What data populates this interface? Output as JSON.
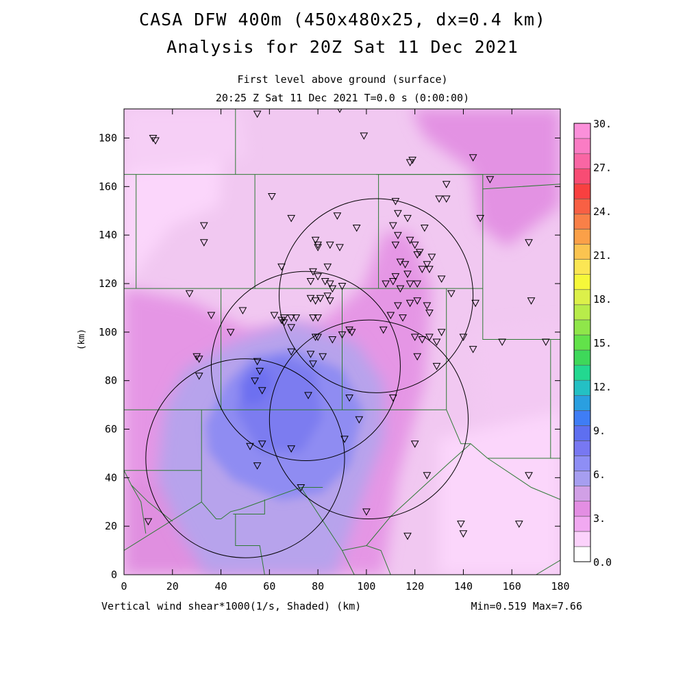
{
  "title_line1": "CASA DFW 400m (450x480x25, dx=0.4 km)",
  "title_line2": "Analysis for 20Z Sat 11 Dec 2021",
  "subtitle_line1": "First level above ground (surface)",
  "subtitle_line2": "20:25 Z Sat 11 Dec 2021    T=0.0 s (0:00:00)",
  "footer_left": "Vertical wind shear*1000(1/s, Shaded)  (km)",
  "footer_right": "Min=0.519 Max=7.66",
  "y_axis_label": "(km)",
  "x_ticks": [
    "0",
    "20",
    "40",
    "60",
    "80",
    "100",
    "120",
    "140",
    "160",
    "180"
  ],
  "y_ticks": [
    "0",
    "20",
    "40",
    "60",
    "80",
    "100",
    "120",
    "140",
    "160",
    "180"
  ],
  "colorbar": {
    "labels": [
      "30.",
      "27.",
      "24.",
      "21.",
      "18.",
      "15.",
      "12.",
      "9.",
      "6.",
      "3.",
      "0.0"
    ],
    "colors": [
      "#ffffff",
      "#fbd2fb",
      "#f1a9f1",
      "#e38ee3",
      "#d1a0e6",
      "#a69ef0",
      "#8e8ef5",
      "#7878f2",
      "#5e6ff0",
      "#3f7df5",
      "#2a9fe0",
      "#24c0c4",
      "#23d890",
      "#3ed85a",
      "#62e24a",
      "#8fe64a",
      "#b8ec4a",
      "#dcf04a",
      "#f6f83a",
      "#fbe654",
      "#fbc450",
      "#fba048",
      "#f98048",
      "#f86044",
      "#f84040",
      "#f84c74",
      "#f966a4",
      "#fa7cc4",
      "#fb90da"
    ]
  },
  "chart_data": {
    "type": "heatmap",
    "xlabel": "(km)",
    "ylabel": "(km)",
    "xlim": [
      0,
      180
    ],
    "ylim": [
      0,
      192
    ],
    "field": "Vertical wind shear*1000 (1/s)",
    "min": 0.519,
    "max": 7.66,
    "colorbar_range": [
      0,
      30
    ],
    "radar_rings": [
      {
        "cx": 50,
        "cy": 48,
        "r": 41
      },
      {
        "cx": 75,
        "cy": 86,
        "r": 39
      },
      {
        "cx": 104,
        "cy": 115,
        "r": 40
      },
      {
        "cx": 101,
        "cy": 64,
        "r": 41
      }
    ],
    "stations": [
      [
        12,
        180
      ],
      [
        13,
        179
      ],
      [
        55,
        190
      ],
      [
        89,
        192
      ],
      [
        99,
        181
      ],
      [
        118,
        170
      ],
      [
        119,
        171
      ],
      [
        144,
        172
      ],
      [
        151,
        163
      ],
      [
        61,
        156
      ],
      [
        133,
        161
      ],
      [
        130,
        155
      ],
      [
        133,
        155
      ],
      [
        112,
        154
      ],
      [
        147,
        147
      ],
      [
        113,
        149
      ],
      [
        117,
        147
      ],
      [
        111,
        144
      ],
      [
        113,
        140
      ],
      [
        124,
        143
      ],
      [
        33,
        144
      ],
      [
        33,
        137
      ],
      [
        69,
        147
      ],
      [
        88,
        148
      ],
      [
        96,
        143
      ],
      [
        79,
        138
      ],
      [
        80,
        136
      ],
      [
        80,
        135
      ],
      [
        85,
        136
      ],
      [
        89,
        135
      ],
      [
        112,
        136
      ],
      [
        118,
        138
      ],
      [
        120,
        136
      ],
      [
        122,
        133
      ],
      [
        121,
        132
      ],
      [
        127,
        131
      ],
      [
        167,
        137
      ],
      [
        118,
        120
      ],
      [
        114,
        129
      ],
      [
        116,
        128
      ],
      [
        117,
        124
      ],
      [
        121,
        120
      ],
      [
        123,
        126
      ],
      [
        125,
        128
      ],
      [
        126,
        126
      ],
      [
        131,
        122
      ],
      [
        65,
        127
      ],
      [
        78,
        125
      ],
      [
        84,
        127
      ],
      [
        77,
        121
      ],
      [
        80,
        123
      ],
      [
        83,
        121
      ],
      [
        85,
        120
      ],
      [
        86,
        118
      ],
      [
        90,
        119
      ],
      [
        108,
        120
      ],
      [
        111,
        121
      ],
      [
        112,
        123
      ],
      [
        114,
        118
      ],
      [
        27,
        116
      ],
      [
        135,
        116
      ],
      [
        145,
        112
      ],
      [
        168,
        113
      ],
      [
        84,
        115
      ],
      [
        81,
        114
      ],
      [
        85,
        113
      ],
      [
        77,
        114
      ],
      [
        79,
        113
      ],
      [
        118,
        112
      ],
      [
        121,
        113
      ],
      [
        113,
        111
      ],
      [
        125,
        111
      ],
      [
        126,
        108
      ],
      [
        110,
        107
      ],
      [
        115,
        106
      ],
      [
        36,
        107
      ],
      [
        49,
        109
      ],
      [
        62,
        107
      ],
      [
        66,
        106
      ],
      [
        69,
        106
      ],
      [
        71,
        106
      ],
      [
        65,
        105
      ],
      [
        66,
        104
      ],
      [
        78,
        106
      ],
      [
        80,
        106
      ],
      [
        69,
        102
      ],
      [
        44,
        100
      ],
      [
        90,
        99
      ],
      [
        93,
        101
      ],
      [
        94,
        100
      ],
      [
        107,
        101
      ],
      [
        79,
        98
      ],
      [
        80,
        98
      ],
      [
        86,
        97
      ],
      [
        120,
        98
      ],
      [
        123,
        97
      ],
      [
        126,
        98
      ],
      [
        129,
        96
      ],
      [
        131,
        100
      ],
      [
        140,
        98
      ],
      [
        144,
        93
      ],
      [
        156,
        96
      ],
      [
        174,
        96
      ],
      [
        30,
        90
      ],
      [
        31,
        89
      ],
      [
        31,
        82
      ],
      [
        69,
        92
      ],
      [
        77,
        91
      ],
      [
        82,
        90
      ],
      [
        78,
        87
      ],
      [
        55,
        88
      ],
      [
        56,
        84
      ],
      [
        54,
        80
      ],
      [
        57,
        76
      ],
      [
        76,
        74
      ],
      [
        93,
        73
      ],
      [
        111,
        73
      ],
      [
        121,
        90
      ],
      [
        129,
        86
      ],
      [
        97,
        64
      ],
      [
        57,
        54
      ],
      [
        69,
        52
      ],
      [
        91,
        56
      ],
      [
        52,
        53
      ],
      [
        120,
        54
      ],
      [
        55,
        45
      ],
      [
        73,
        36
      ],
      [
        125,
        41
      ],
      [
        10,
        22
      ],
      [
        100,
        26
      ],
      [
        139,
        21
      ],
      [
        140,
        17
      ],
      [
        117,
        16
      ],
      [
        163,
        21
      ],
      [
        167,
        41
      ]
    ],
    "counties": [
      [
        [
          46,
          192
        ],
        [
          46,
          165
        ]
      ],
      [
        [
          0,
          165
        ],
        [
          192,
          165
        ]
      ],
      [
        [
          5,
          165
        ],
        [
          5,
          118
        ]
      ],
      [
        [
          0,
          118
        ],
        [
          40,
          118
        ],
        [
          40,
          68
        ],
        [
          0,
          68
        ]
      ],
      [
        [
          54,
          165
        ],
        [
          54,
          118
        ]
      ],
      [
        [
          105,
          165
        ],
        [
          105,
          118
        ]
      ],
      [
        [
          40,
          118
        ],
        [
          105,
          118
        ]
      ],
      [
        [
          104,
          165
        ],
        [
          148,
          165
        ],
        [
          148,
          159
        ],
        [
          180,
          161
        ]
      ],
      [
        [
          148,
          159
        ],
        [
          148,
          97
        ],
        [
          180,
          97
        ]
      ],
      [
        [
          105,
          118
        ],
        [
          148,
          118
        ]
      ],
      [
        [
          90,
          118
        ],
        [
          90,
          68
        ]
      ],
      [
        [
          133,
          118
        ],
        [
          133,
          68
        ]
      ],
      [
        [
          40,
          68
        ],
        [
          133,
          68
        ]
      ],
      [
        [
          180,
          97
        ],
        [
          176,
          97
        ],
        [
          176,
          48
        ],
        [
          180,
          48
        ]
      ],
      [
        [
          133,
          68
        ],
        [
          139,
          54
        ],
        [
          143,
          54
        ],
        [
          150,
          48
        ],
        [
          176,
          48
        ]
      ],
      [
        [
          150,
          48
        ],
        [
          168,
          36
        ],
        [
          180,
          31
        ]
      ],
      [
        [
          176,
          48
        ],
        [
          178,
          48
        ]
      ],
      [
        [
          0,
          68
        ],
        [
          0,
          0
        ]
      ],
      [
        [
          32,
          68
        ],
        [
          32,
          43
        ],
        [
          0,
          43
        ]
      ],
      [
        [
          0,
          43
        ],
        [
          3,
          37
        ],
        [
          10,
          30
        ],
        [
          20,
          22
        ]
      ],
      [
        [
          3,
          37
        ],
        [
          7,
          30
        ],
        [
          9,
          17
        ]
      ],
      [
        [
          32,
          43
        ],
        [
          32,
          30
        ],
        [
          0,
          10
        ]
      ],
      [
        [
          32,
          30
        ],
        [
          38,
          23
        ],
        [
          40,
          23
        ],
        [
          44,
          26
        ],
        [
          48,
          27
        ],
        [
          59,
          31
        ],
        [
          73,
          36
        ]
      ],
      [
        [
          73,
          36
        ],
        [
          90,
          10
        ],
        [
          100,
          12
        ],
        [
          106,
          10
        ],
        [
          110,
          0
        ]
      ],
      [
        [
          73,
          36
        ],
        [
          82,
          36
        ]
      ],
      [
        [
          143,
          54
        ],
        [
          134,
          46
        ],
        [
          110,
          24
        ],
        [
          100,
          12
        ]
      ],
      [
        [
          90,
          10
        ],
        [
          95,
          0
        ]
      ],
      [
        [
          58,
          31
        ],
        [
          58,
          25
        ],
        [
          45,
          25
        ]
      ],
      [
        [
          46,
          25
        ],
        [
          46,
          12
        ],
        [
          56,
          12
        ],
        [
          58,
          0
        ]
      ],
      [
        [
          170,
          0
        ],
        [
          180,
          6
        ]
      ]
    ]
  }
}
